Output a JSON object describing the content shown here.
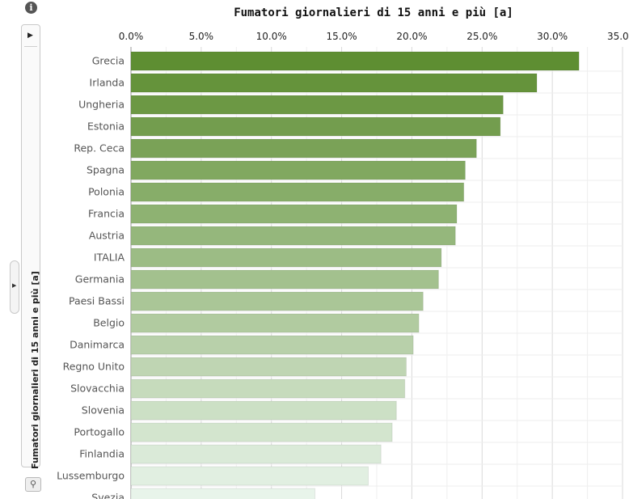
{
  "chart_data": {
    "type": "bar",
    "orientation": "horizontal",
    "title": "Fumatori giornalieri di 15 anni e più [a]",
    "side_label": "Fumatori giornalieri di 15 anni e più [a]",
    "x_ticks": [
      "0.0%",
      "5.0%",
      "10.0%",
      "15.0%",
      "20.0%",
      "25.0%",
      "30.0%",
      "35.0%"
    ],
    "xlim": [
      0,
      35
    ],
    "grid": true,
    "categories": [
      "Grecia",
      "Irlanda",
      "Ungheria",
      "Estonia",
      "Rep. Ceca",
      "Spagna",
      "Polonia",
      "Francia",
      "Austria",
      "ITALIA",
      "Germania",
      "Paesi Bassi",
      "Belgio",
      "Danimarca",
      "Regno Unito",
      "Slovacchia",
      "Slovenia",
      "Portogallo",
      "Finlandia",
      "Lussemburgo",
      "Svezia"
    ],
    "values": [
      31.9,
      28.9,
      26.5,
      26.3,
      24.6,
      23.8,
      23.7,
      23.2,
      23.1,
      22.1,
      21.9,
      20.8,
      20.5,
      20.1,
      19.6,
      19.5,
      18.9,
      18.6,
      17.8,
      16.9,
      13.1
    ],
    "colors": {
      "dark": "#5e8e32",
      "light": "#e8f4ea"
    }
  },
  "icons": {
    "info": "info-icon",
    "zoom": "magnifier-icon",
    "expand": "play-icon"
  },
  "info_glyph": "i",
  "zoom_glyph": "⚲",
  "expand_glyph": "▶"
}
